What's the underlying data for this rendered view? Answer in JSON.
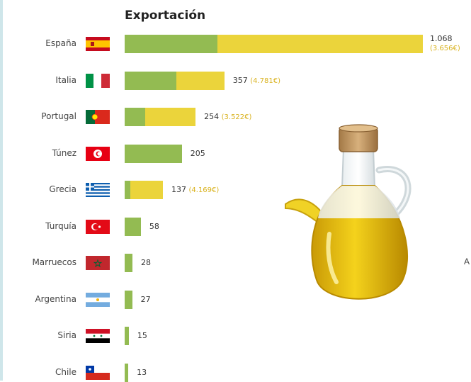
{
  "chart_data": {
    "type": "bar",
    "title": "Exportación",
    "categories": [
      "España",
      "Italia",
      "Portugal",
      "Túnez",
      "Grecia",
      "Turquía",
      "Marruecos",
      "Argentina",
      "Siria",
      "Chile"
    ],
    "series": [
      {
        "values": [
          1068,
          357,
          254,
          205,
          137,
          58,
          28,
          27,
          15,
          13
        ]
      }
    ],
    "stacked_breakdown": {
      "green_share": [
        0.31,
        0.52,
        0.29,
        1,
        0.14,
        1,
        1,
        1,
        1,
        1
      ]
    },
    "value_labels": [
      "1.068",
      "357",
      "254",
      "205",
      "137",
      "58",
      "28",
      "27",
      "15",
      "13"
    ],
    "euro_labels": [
      "(3.656€)",
      "(4.781€)",
      "(3.522€)",
      "",
      "(4.169€)",
      "",
      "",
      "",
      "",
      ""
    ],
    "xlim": [
      0,
      1068
    ],
    "grid": false,
    "legend": "none"
  },
  "colors": {
    "green": "#93bb52",
    "yellow": "#ebd43b",
    "euro_text": "#d9b21e"
  },
  "flags": [
    "spain-flag",
    "italy-flag",
    "portugal-flag",
    "tunisia-flag",
    "greece-flag",
    "turkey-flag",
    "morocco-flag",
    "argentina-flag",
    "syria-flag",
    "chile-flag"
  ],
  "edge_text": "A",
  "illustration": "olive-oil-jug-icon"
}
